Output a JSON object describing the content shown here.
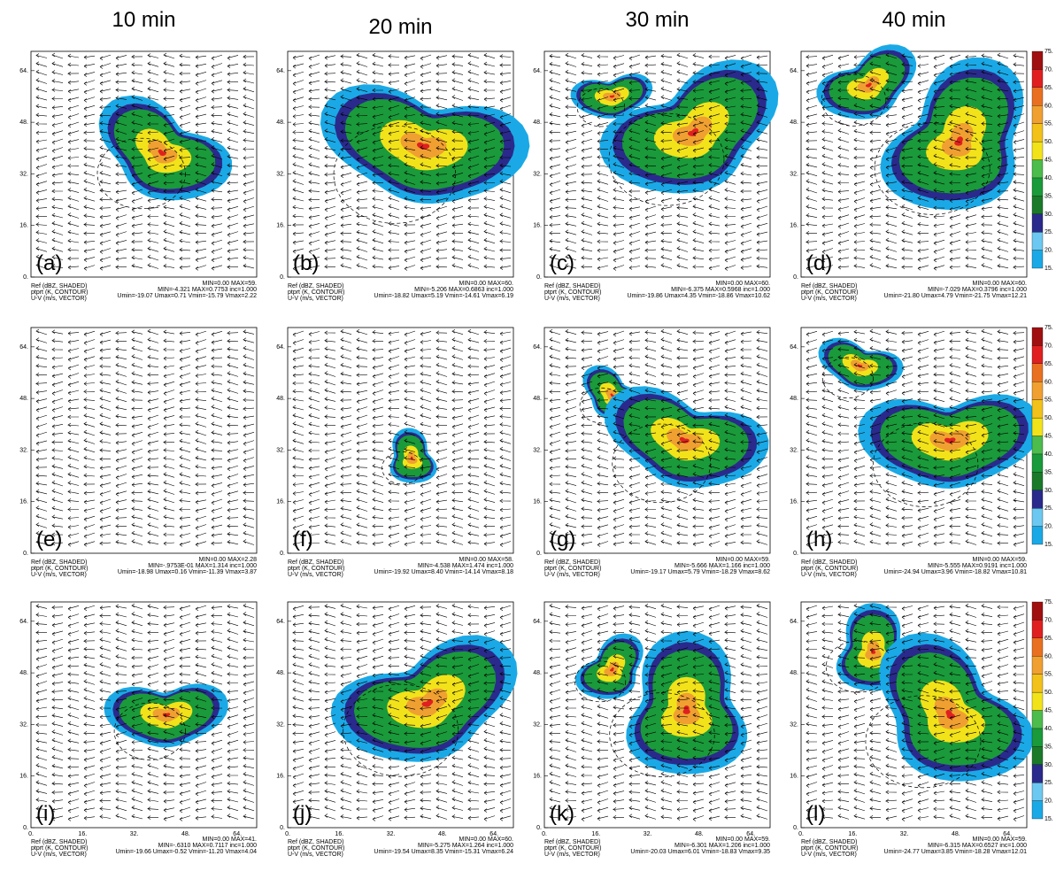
{
  "column_headers": [
    "10 min",
    "20 min",
    "30 min",
    "40 min"
  ],
  "footer_left": [
    "Ref (dBZ, SHADED)",
    "ptprt (K, CONTOUR)",
    "U-V (m/s, VECTOR)"
  ],
  "y_ticks": [
    "0.",
    "16.",
    "32.",
    "48.",
    "64."
  ],
  "x_ticks": [
    "0.",
    "16.",
    "32.",
    "48.",
    "64."
  ],
  "colorbar_labels": [
    "15.",
    "20.",
    "25.",
    "30.",
    "35.",
    "40.",
    "45.",
    "50.",
    "55.",
    "60.",
    "65.",
    "70.",
    "75."
  ],
  "panels": [
    {
      "label": "(a)",
      "footer_right": [
        "MIN=0.00 MAX=59.",
        "MIN=-4.321 MAX=0.7753 inc=1.000",
        "Umin=-19.07 Umax=0.71 Vmin=-15.79 Vmax=2.22"
      ]
    },
    {
      "label": "(b)",
      "footer_right": [
        "MIN=0.00 MAX=60.",
        "MIN=-5.206 MAX=0.6863 inc=1.000",
        "Umin=-18.82 Umax=5.19 Vmin=-14.61 Vmax=6.19"
      ]
    },
    {
      "label": "(c)",
      "footer_right": [
        "MIN=0.00 MAX=60.",
        "MIN=-6.375 MAX=0.5968 inc=1.000",
        "Umin=-19.86 Umax=4.35 Vmin=-18.86 Vmax=10.62"
      ]
    },
    {
      "label": "(d)",
      "footer_right": [
        "MIN=0.00 MAX=60.",
        "MIN=-7.029 MAX=0.3796 inc=1.000",
        "Umin=-21.80 Umax=4.79 Vmin=-21.75 Vmax=12.21"
      ]
    },
    {
      "label": "(e)",
      "footer_right": [
        "MIN=0.00 MAX=2.28",
        "MIN=-.9753E-01 MAX=1.314 inc=1.000",
        "Umin=-18.98 Umax=0.16 Vmin=-11.39 Vmax=3.87"
      ]
    },
    {
      "label": "(f)",
      "footer_right": [
        "MIN=0.00 MAX=58.",
        "MIN=-4.538 MAX=1.474 inc=1.000",
        "Umin=-19.92 Umax=8.40 Vmin=-14.14 Vmax=8.18"
      ]
    },
    {
      "label": "(g)",
      "footer_right": [
        "MIN=0.00 MAX=59.",
        "MIN=-5.666 MAX=1.166 inc=1.000",
        "Umin=-19.17 Umax=5.79 Vmin=-18.29 Vmax=8.62"
      ]
    },
    {
      "label": "(h)",
      "footer_right": [
        "MIN=0.00 MAX=59.",
        "MIN=-5.555 MAX=0.9191 inc=1.000",
        "Umin=-24.94 Umax=3.96 Vmin=-18.82 Vmax=10.81"
      ]
    },
    {
      "label": "(i)",
      "footer_right": [
        "MIN=0.00 MAX=41.",
        "MIN=-.6310 MAX=0.7117 inc=1.000",
        "Umin=-19.66 Umax=-0.52 Vmin=-11.20 Vmax=4.04"
      ]
    },
    {
      "label": "(j)",
      "footer_right": [
        "MIN=0.00 MAX=60.",
        "MIN=-5.275 MAX=1.264 inc=1.000",
        "Umin=-19.54 Umax=8.35 Vmin=-15.31 Vmax=6.24"
      ]
    },
    {
      "label": "(k)",
      "footer_right": [
        "MIN=0.00 MAX=59.",
        "MIN=-6.301 MAX=1.206 inc=1.000",
        "Umin=-20.03 Umax=6.01 Vmin=-18.83 Vmax=9.35"
      ]
    },
    {
      "label": "(l)",
      "footer_right": [
        "MIN=0.00 MAX=59.",
        "MIN=-6.315 MAX=0.6527 inc=1.000",
        "Umin=-24.77 Umax=3.85 Vmin=-18.28 Vmax=12.01"
      ]
    }
  ]
}
